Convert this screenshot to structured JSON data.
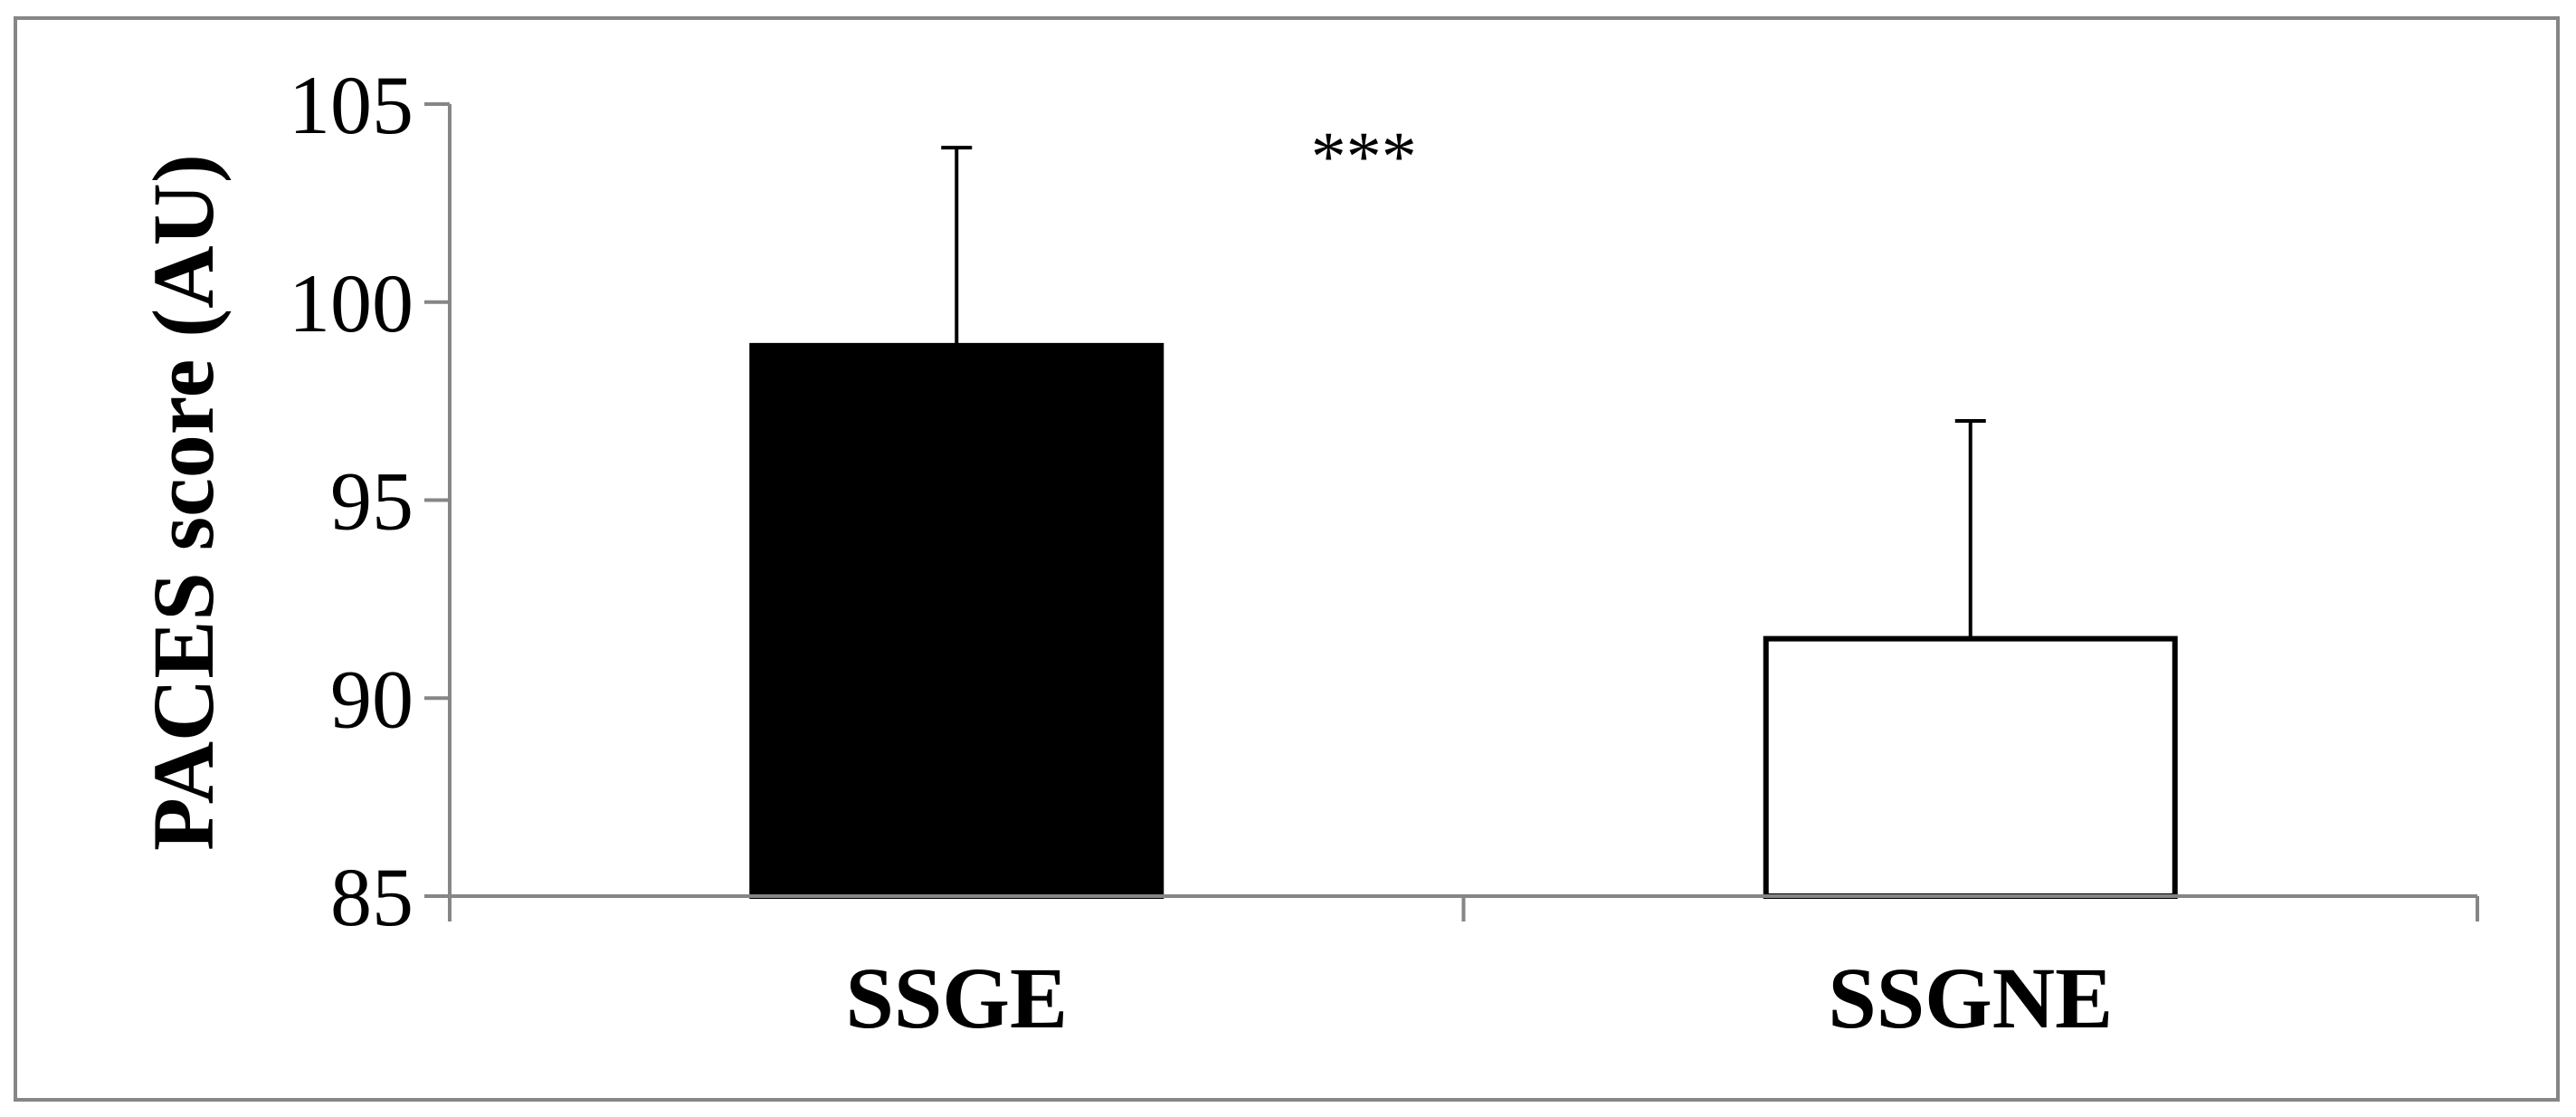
{
  "chart_data": {
    "type": "bar",
    "title": "",
    "xlabel": "",
    "ylabel": "PACES score (AU)",
    "categories": [
      "SSGE",
      "SSGNE"
    ],
    "series": [
      {
        "values": [
          98.9,
          91.5
        ],
        "errors": [
          5.0,
          5.5
        ],
        "fill_colors": [
          "#000000",
          "#ffffff"
        ],
        "stroke_color": "#000000"
      }
    ],
    "ylim": [
      85,
      105
    ],
    "yticks": [
      85,
      90,
      95,
      100,
      105
    ],
    "ytick_labels": [
      "85",
      "90",
      "95",
      "100",
      "105"
    ],
    "grid": false,
    "legend": "none",
    "annotations": [
      {
        "text": "***",
        "category": "SSGE",
        "y": 104
      }
    ],
    "colors": {
      "axis": "#868686",
      "frame": "#868686",
      "text": "#000000"
    }
  }
}
